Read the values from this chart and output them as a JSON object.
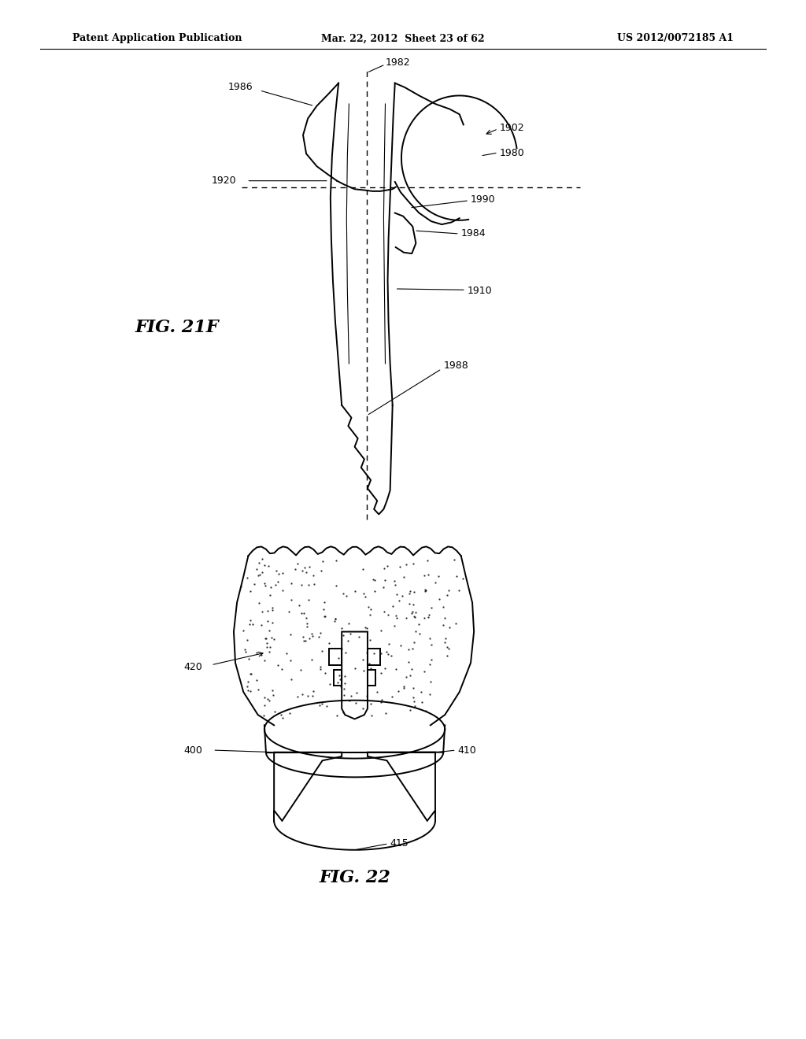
{
  "background_color": "#ffffff",
  "header_left": "Patent Application Publication",
  "header_mid": "Mar. 22, 2012  Sheet 23 of 62",
  "header_right": "US 2012/0072185 A1",
  "fig21f_label": "FIG. 21F",
  "fig22_label": "FIG. 22"
}
